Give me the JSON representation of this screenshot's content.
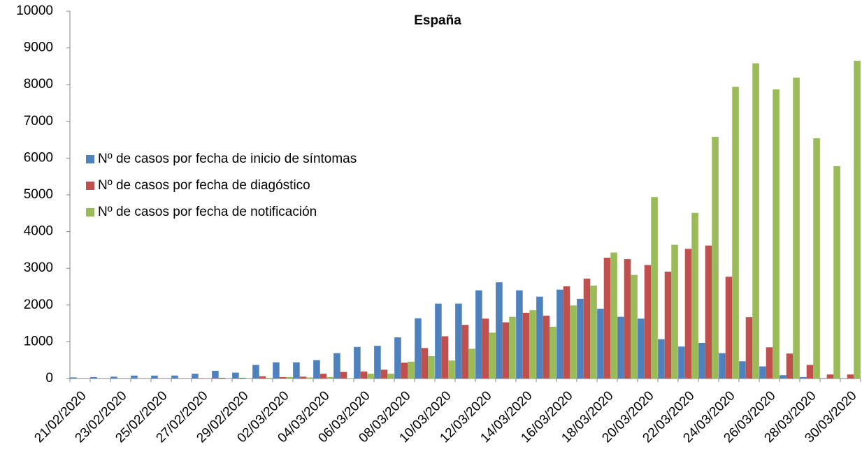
{
  "chart_data": {
    "type": "bar",
    "title": "España",
    "categories": [
      "21/02/2020",
      null,
      "23/02/2020",
      null,
      "25/02/2020",
      null,
      "27/02/2020",
      null,
      "29/02/2020",
      null,
      "02/03/2020",
      null,
      "04/03/2020",
      null,
      "06/03/2020",
      null,
      "08/03/2020",
      null,
      "10/03/2020",
      null,
      "12/03/2020",
      null,
      "14/03/2020",
      null,
      "16/03/2020",
      null,
      "18/03/2020",
      null,
      "20/03/2020",
      null,
      "22/03/2020",
      null,
      "24/03/2020",
      null,
      "26/03/2020",
      null,
      "28/03/2020",
      null,
      "30/03/2020"
    ],
    "series": [
      {
        "name": "Nº de casos por fecha de inicio de síntomas",
        "color": "#4f81bd",
        "values": [
          30,
          40,
          50,
          80,
          80,
          80,
          130,
          210,
          160,
          370,
          440,
          440,
          500,
          690,
          860,
          890,
          1120,
          1640,
          2040,
          2040,
          2400,
          2620,
          2400,
          2230,
          2420,
          2170,
          1900,
          1680,
          1630,
          1070,
          870,
          970,
          690,
          470,
          330,
          90,
          40,
          10,
          5
        ]
      },
      {
        "name": "Nº de casos por fecha de diagóstico",
        "color": "#c0504d",
        "values": [
          0,
          0,
          0,
          0,
          0,
          0,
          10,
          20,
          20,
          60,
          40,
          50,
          130,
          180,
          190,
          240,
          430,
          830,
          1150,
          1460,
          1630,
          1530,
          1790,
          1710,
          2510,
          2720,
          3290,
          3250,
          3090,
          2910,
          3530,
          3620,
          2770,
          1670,
          850,
          680,
          370,
          110,
          110
        ]
      },
      {
        "name": "Nº de casos por fecha de notificación",
        "color": "#9bbb59",
        "values": [
          0,
          0,
          0,
          0,
          0,
          0,
          0,
          0,
          0,
          20,
          40,
          30,
          40,
          10,
          130,
          130,
          460,
          610,
          490,
          810,
          1250,
          1680,
          1860,
          1410,
          1990,
          2530,
          3430,
          2820,
          4940,
          3640,
          4510,
          6580,
          7940,
          8580,
          7870,
          8190,
          6540,
          5780,
          8650
        ]
      }
    ],
    "ylim": [
      0,
      10000
    ],
    "yticks": [
      0,
      1000,
      2000,
      3000,
      4000,
      5000,
      6000,
      7000,
      8000,
      9000,
      10000
    ],
    "grid": false,
    "legend": "left"
  }
}
